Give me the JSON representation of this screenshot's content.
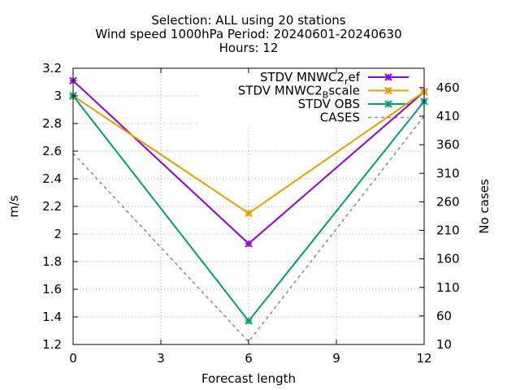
{
  "chart_data": {
    "type": "line",
    "title_lines": [
      "Selection: ALL using    20 stations",
      "Wind speed 1000hPa   Period: 20240601-20240630",
      "Hours: 12"
    ],
    "xlabel": "Forecast length",
    "ylabel": "m/s",
    "y2label": "No cases",
    "x": [
      0,
      6,
      12
    ],
    "xlim": [
      0,
      12
    ],
    "xticks": [
      0,
      3,
      6,
      9,
      12
    ],
    "ylim": [
      1.2,
      3.2
    ],
    "yticks": [
      1.2,
      1.4,
      1.6,
      1.8,
      2,
      2.2,
      2.4,
      2.6,
      2.8,
      3,
      3.2
    ],
    "y2lim": [
      10,
      494
    ],
    "y2ticks": [
      10,
      60,
      110,
      160,
      210,
      260,
      310,
      360,
      410,
      460
    ],
    "grid": true,
    "legend_position": "top-right",
    "series": [
      {
        "name": "STDV MNWC2",
        "sub": "r",
        "suffix": "ef",
        "values": [
          3.11,
          1.93,
          3.03
        ],
        "color": "#9400d3",
        "axis": "y",
        "dashed": false,
        "marker": "x"
      },
      {
        "name": "STDV MNWC2",
        "sub": "B",
        "suffix": "scale",
        "values": [
          3.0,
          2.15,
          3.03
        ],
        "color": "#e69f00",
        "axis": "y",
        "dashed": false,
        "marker": "x"
      },
      {
        "name": "STDV OBS",
        "sub": "",
        "suffix": "",
        "values": [
          3.0,
          1.37,
          2.96
        ],
        "color": "#009e73",
        "axis": "y",
        "dashed": false,
        "marker": "x"
      },
      {
        "name": "CASES",
        "sub": "",
        "suffix": "",
        "values": [
          345,
          15,
          410
        ],
        "color": "#888888",
        "axis": "y2",
        "dashed": true,
        "marker": "none"
      }
    ]
  }
}
